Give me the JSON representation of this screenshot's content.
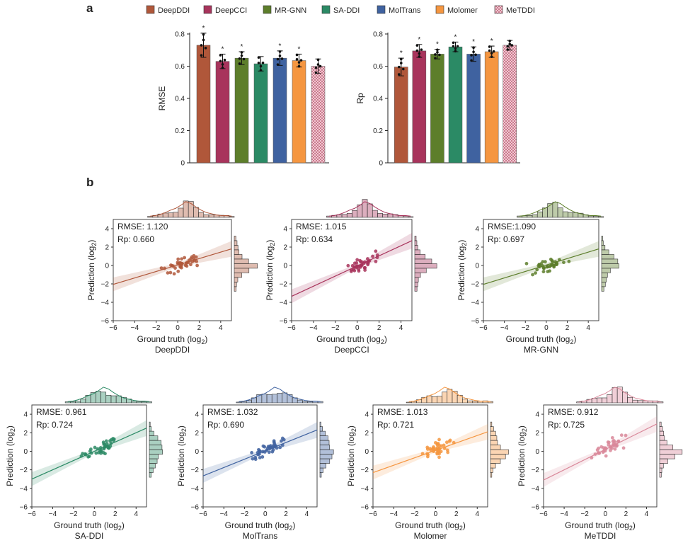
{
  "panel_labels": {
    "a": "a",
    "b": "b"
  },
  "chart_data": [
    {
      "type": "bar",
      "panel": "a-left",
      "title": "",
      "xlabel": "",
      "ylabel": "RMSE",
      "ylim": [
        0,
        0.8
      ],
      "yticks": [
        0,
        0.2,
        0.4,
        0.6,
        0.8
      ],
      "categories": [
        "DeepDDI",
        "DeepCCI",
        "MR-GNN",
        "SA-DDI",
        "MolTrans",
        "Molomer",
        "MeTDDI"
      ],
      "values": [
        0.73,
        0.63,
        0.65,
        0.615,
        0.65,
        0.635,
        0.6
      ],
      "errors": [
        0.075,
        0.045,
        0.04,
        0.045,
        0.045,
        0.04,
        0.045
      ],
      "significant": [
        true,
        true,
        true,
        false,
        true,
        true,
        false
      ],
      "significance_marker": "*"
    },
    {
      "type": "bar",
      "panel": "a-right",
      "title": "",
      "xlabel": "",
      "ylabel": "Rp",
      "ylim": [
        0,
        0.8
      ],
      "yticks": [
        0,
        0.2,
        0.4,
        0.6,
        0.8
      ],
      "categories": [
        "DeepDDI",
        "DeepCCI",
        "MR-GNN",
        "SA-DDI",
        "MolTrans",
        "Molomer",
        "MeTDDI"
      ],
      "values": [
        0.595,
        0.695,
        0.675,
        0.72,
        0.675,
        0.69,
        0.73
      ],
      "errors": [
        0.055,
        0.04,
        0.03,
        0.03,
        0.045,
        0.035,
        0.03
      ],
      "significant": [
        true,
        true,
        true,
        true,
        true,
        true,
        false
      ],
      "significance_marker": "*"
    },
    {
      "type": "scatter",
      "panel": "b",
      "name": "DeepDDI",
      "rmse_label": "RMSE: 1.120",
      "rp_label": "Rp: 0.660",
      "xlim": [
        -6,
        5
      ],
      "ylim": [
        -6,
        5
      ],
      "slope": 0.35,
      "intercept": 0.05
    },
    {
      "type": "scatter",
      "panel": "b",
      "name": "DeepCCI",
      "rmse_label": "RMSE: 1.015",
      "rp_label": "Rp: 0.634",
      "xlim": [
        -6,
        5
      ],
      "ylim": [
        -6,
        5
      ],
      "slope": 0.55,
      "intercept": -0.05
    },
    {
      "type": "scatter",
      "panel": "b",
      "name": "MR-GNN",
      "rmse_label": "RMSE:1.090",
      "rp_label": "Rp: 0.697",
      "xlim": [
        -6,
        5
      ],
      "ylim": [
        -6,
        5
      ],
      "slope": 0.35,
      "intercept": 0.05
    },
    {
      "type": "scatter",
      "panel": "b",
      "name": "SA-DDI",
      "rmse_label": "RMSE: 0.961",
      "rp_label": "Rp: 0.724",
      "xlim": [
        -6,
        5
      ],
      "ylim": [
        -6,
        5
      ],
      "slope": 0.5,
      "intercept": 0.0
    },
    {
      "type": "scatter",
      "panel": "b",
      "name": "MolTrans",
      "rmse_label": "RMSE: 1.032",
      "rp_label": "Rp: 0.690",
      "xlim": [
        -6,
        5
      ],
      "ylim": [
        -6,
        5
      ],
      "slope": 0.45,
      "intercept": 0.05
    },
    {
      "type": "scatter",
      "panel": "b",
      "name": "Molomer",
      "rmse_label": "RMSE: 1.013",
      "rp_label": "Rp: 0.721",
      "xlim": [
        -6,
        5
      ],
      "ylim": [
        -6,
        5
      ],
      "slope": 0.4,
      "intercept": 0.1
    },
    {
      "type": "scatter",
      "panel": "b",
      "name": "MeTDDI",
      "rmse_label": "RMSE: 0.912",
      "rp_label": "Rp: 0.725",
      "xlim": [
        -6,
        5
      ],
      "ylim": [
        -6,
        5
      ],
      "slope": 0.55,
      "intercept": 0.2
    }
  ],
  "legend": [
    {
      "label": "DeepDDI",
      "color": "#b0573a"
    },
    {
      "label": "DeepCCI",
      "color": "#a8345c"
    },
    {
      "label": "MR-GNN",
      "color": "#5d7e2b"
    },
    {
      "label": "SA-DDI",
      "color": "#2b8a65"
    },
    {
      "label": "MolTrans",
      "color": "#3f62a0"
    },
    {
      "label": "Molomer",
      "color": "#f59640"
    },
    {
      "label": "MeTDDI",
      "color": "#d9889a",
      "pattern": "checker"
    }
  ],
  "scatter_axes": {
    "xlabel": "Ground truth (log",
    "ylabel": "Prediction (log",
    "subscript": "2",
    "close": ")",
    "ticks": [
      "−6",
      "−4",
      "−2",
      "0",
      "2",
      "4"
    ]
  }
}
